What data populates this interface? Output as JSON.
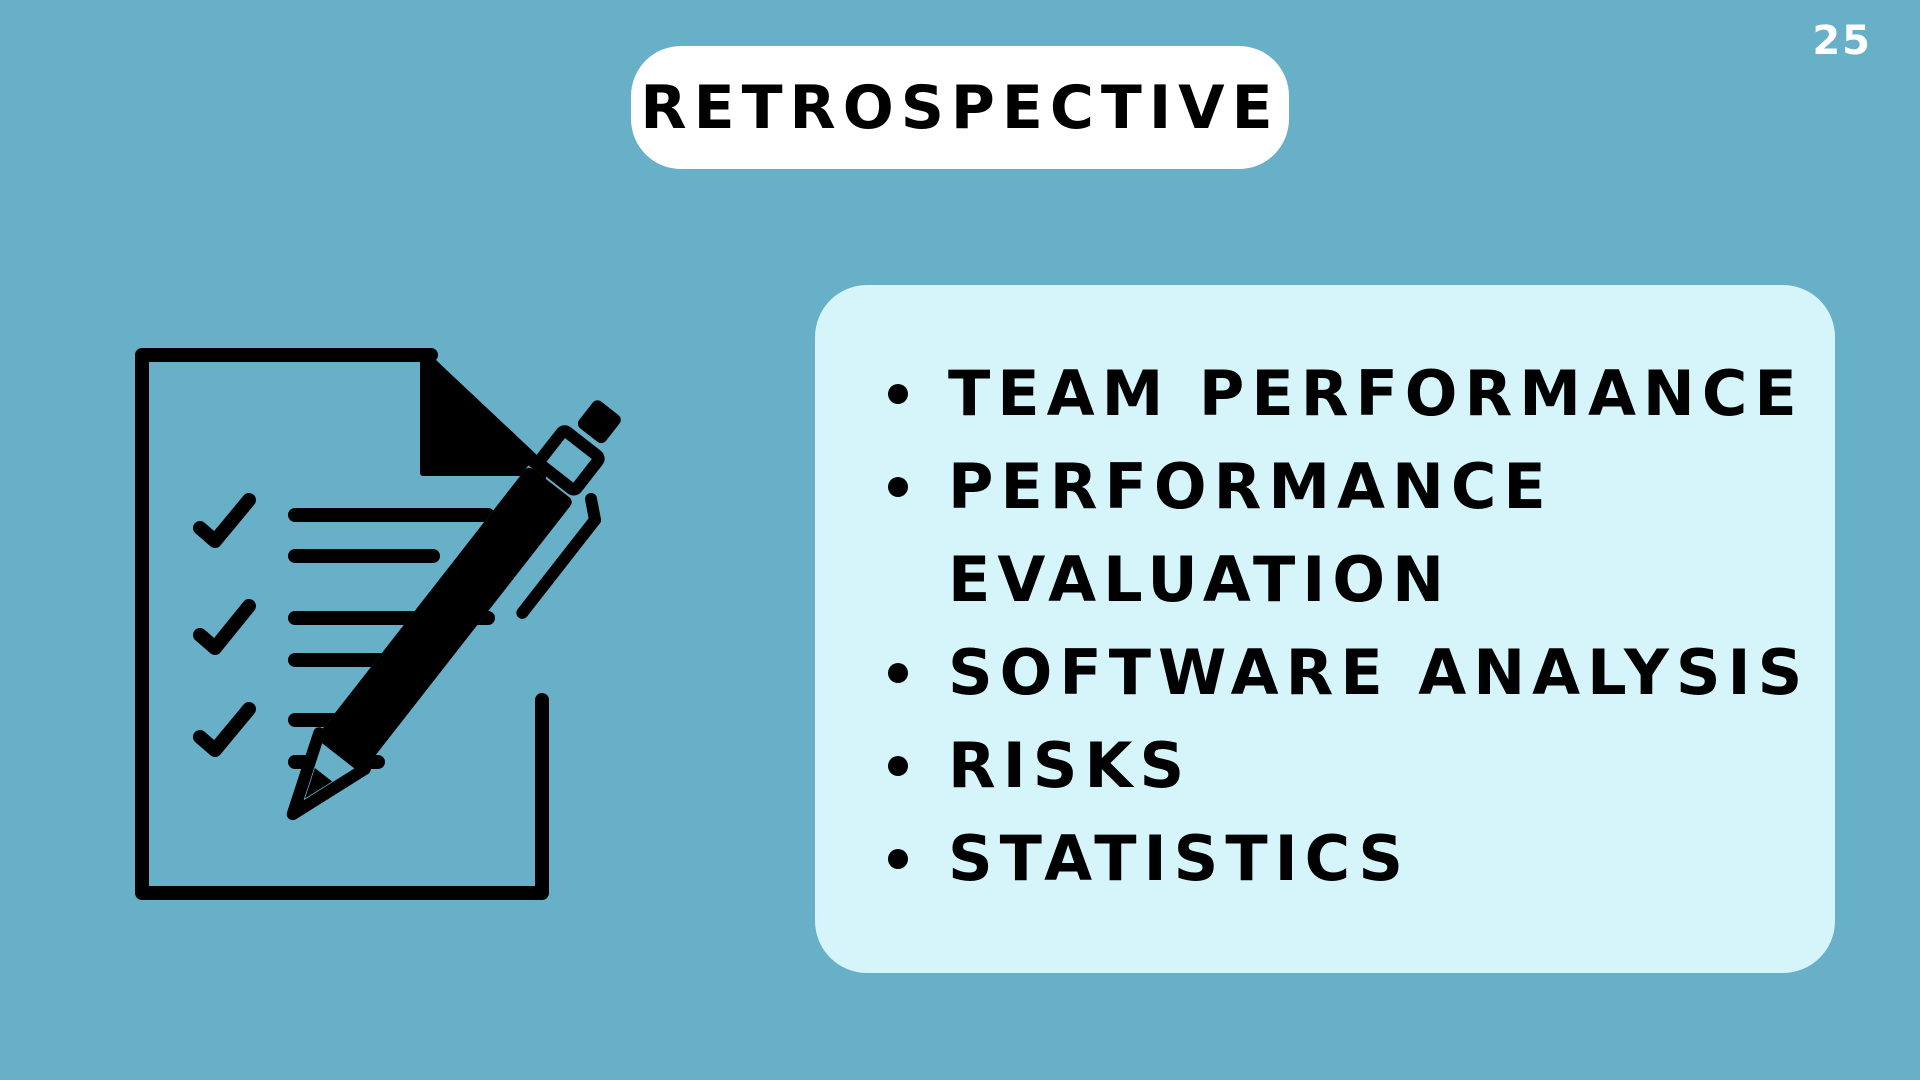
{
  "page": {
    "title": "RETROSPECTIVE",
    "page_number": "25"
  },
  "illustration": {
    "icon": "checklist-document-with-pen-icon"
  },
  "list": {
    "items": [
      {
        "line1": "TEAM PERFORMANCE"
      },
      {
        "line1": "PERFORMANCE",
        "line2": "EVALUATION"
      },
      {
        "line1": "SOFTWARE ANALYSIS"
      },
      {
        "line1": "RISKS"
      },
      {
        "line1": "STATISTICS"
      }
    ]
  },
  "colors": {
    "background": "#68AFC8",
    "card": "#D6F5FB",
    "pill": "#FFFFFF",
    "text": "#000000",
    "page_number": "#FFFFFF"
  }
}
